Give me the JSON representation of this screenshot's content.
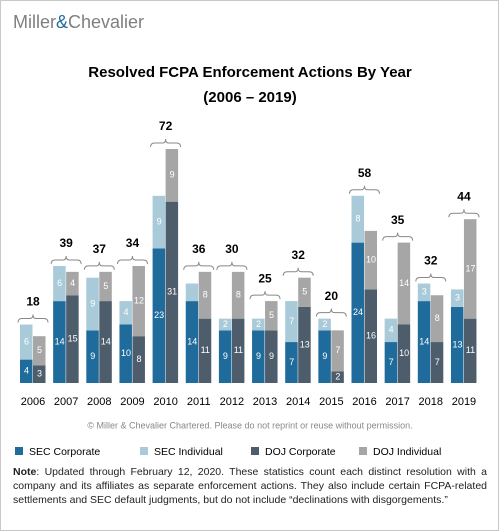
{
  "header": {
    "logo_left": "Miller",
    "logo_amp": "&",
    "logo_right": "Chevalier"
  },
  "chart_data": {
    "type": "paired_stacked_bar",
    "title": "Resolved FCPA Enforcement Actions By Year",
    "subtitle": "(2006 – 2019)",
    "categories": [
      "2006",
      "2007",
      "2008",
      "2009",
      "2010",
      "2011",
      "2012",
      "2013",
      "2014",
      "2015",
      "2016",
      "2017",
      "2018",
      "2019"
    ],
    "totals": [
      18,
      39,
      37,
      34,
      72,
      36,
      30,
      25,
      32,
      20,
      58,
      35,
      32,
      44
    ],
    "series": [
      {
        "name": "SEC Corporate",
        "stack": "SEC",
        "color": "#1f6b9b",
        "values": [
          4,
          14,
          9,
          10,
          23,
          14,
          9,
          9,
          7,
          9,
          24,
          7,
          14,
          13
        ]
      },
      {
        "name": "SEC Individual",
        "stack": "SEC",
        "color": "#a9cbd9",
        "values": [
          6,
          6,
          9,
          4,
          9,
          3,
          2,
          2,
          7,
          2,
          8,
          4,
          3,
          3
        ],
        "value_labels": [
          "6",
          "6",
          "9",
          "4",
          "9",
          null,
          "2",
          "2",
          "7",
          "2",
          "8",
          "4",
          "3",
          "3"
        ]
      },
      {
        "name": "DOJ Corporate",
        "stack": "DOJ",
        "color": "#4d5d6c",
        "values": [
          3,
          15,
          14,
          8,
          31,
          11,
          11,
          9,
          13,
          2,
          16,
          10,
          7,
          11
        ]
      },
      {
        "name": "DOJ Individual",
        "stack": "DOJ",
        "color": "#a6a6a6",
        "values": [
          5,
          4,
          5,
          12,
          9,
          8,
          8,
          5,
          5,
          7,
          10,
          14,
          8,
          17
        ]
      }
    ],
    "copyright": "© Miller & Chevalier Chartered. Please do not reprint or reuse without permission."
  },
  "note": {
    "label": "Note",
    "text": ": Updated through February 12, 2020. These statistics count each distinct resolution with a company and its affiliates as separate enforcement actions. They also include certain FCPA-related settlements and SEC default judgments, but do not include “declinations with disgorgements.”"
  }
}
